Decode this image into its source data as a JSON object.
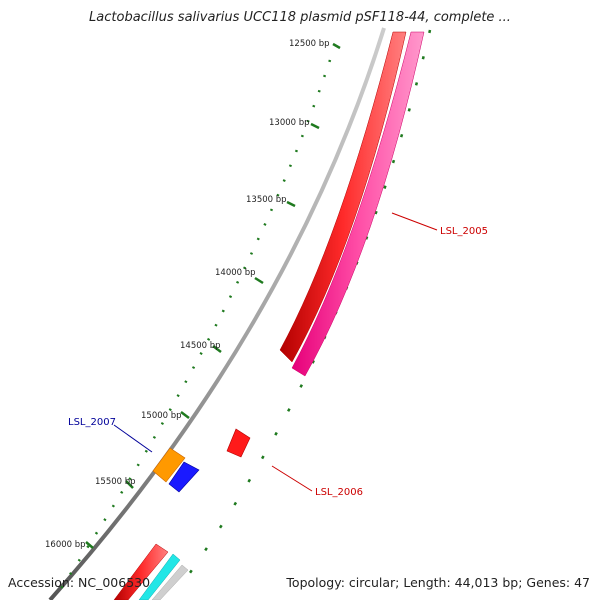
{
  "title": "Lactobacillus salivarius UCC118 plasmid pSF118-44, complete ...",
  "accession": "Accession: NC_006530",
  "summary": "Topology: circular; Length: 44,013 bp; Genes: 47",
  "colors": {
    "backbone": "#7a7a7a",
    "tick": "#1f7a1f",
    "gene_red": "#ff1a1a",
    "gene_pink": "#ff3399",
    "gene_orange": "#ff9900",
    "gene_blue": "#1a1aff",
    "gene_cyan": "#22e6e6",
    "label_red": "#cc0000",
    "label_blue": "#000099"
  },
  "ticks": [
    "12500 bp",
    "13000 bp",
    "13500 bp",
    "14000 bp",
    "14500 bp",
    "15000 bp",
    "15500 bp",
    "16000 bp"
  ],
  "genes": [
    {
      "label": "LSL_2005",
      "color": "gene_red",
      "label_color": "label_red"
    },
    {
      "label": "LSL_2006",
      "color": "gene_red",
      "label_color": "label_red"
    },
    {
      "label": "LSL_2007",
      "color": "gene_blue",
      "label_color": "label_blue"
    }
  ]
}
